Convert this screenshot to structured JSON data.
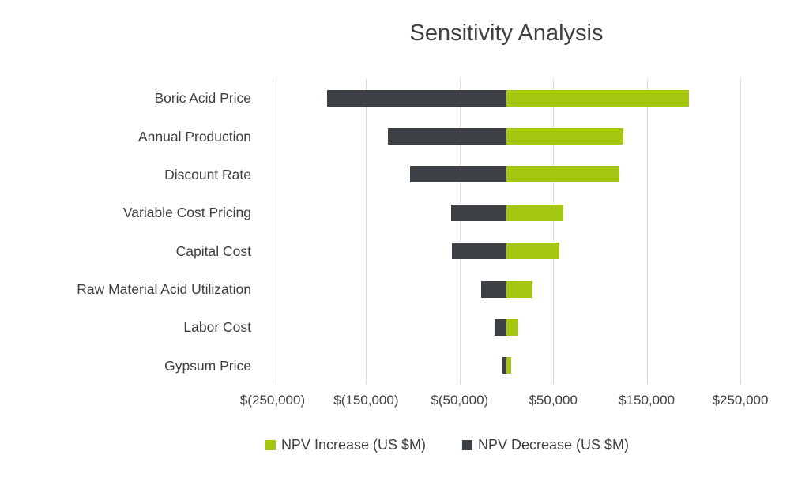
{
  "chart_data": {
    "type": "bar",
    "subtype": "tornado",
    "orientation": "horizontal",
    "title": "Sensitivity Analysis",
    "categories": [
      "Boric Acid Price",
      "Annual Production",
      "Discount Rate",
      "Variable Cost Pricing",
      "Capital Cost",
      "Raw Material Acid Utilization",
      "Labor Cost",
      "Gypsum Price"
    ],
    "series": [
      {
        "name": "NPV Increase (US $M)",
        "color": "#a4c711",
        "values": [
          195000,
          125000,
          121000,
          61000,
          57000,
          28000,
          13000,
          5000
        ]
      },
      {
        "name": "NPV Decrease (US $M)",
        "color": "#3d4044",
        "values": [
          -192000,
          -127000,
          -103000,
          -59000,
          -58000,
          -27000,
          -13000,
          -4000
        ]
      }
    ],
    "xlim": [
      -250000,
      250000
    ],
    "x_ticks": [
      {
        "value": -250000,
        "label": "$(250,000)"
      },
      {
        "value": -150000,
        "label": "$(150,000)"
      },
      {
        "value": -50000,
        "label": "$(50,000)"
      },
      {
        "value": 50000,
        "label": "$50,000"
      },
      {
        "value": 150000,
        "label": "$150,000"
      },
      {
        "value": 250000,
        "label": "$250,000"
      }
    ],
    "grid": "vertical",
    "legend_position": "bottom",
    "gridline_color": "#d9d9d9",
    "text_color": "#404040"
  }
}
